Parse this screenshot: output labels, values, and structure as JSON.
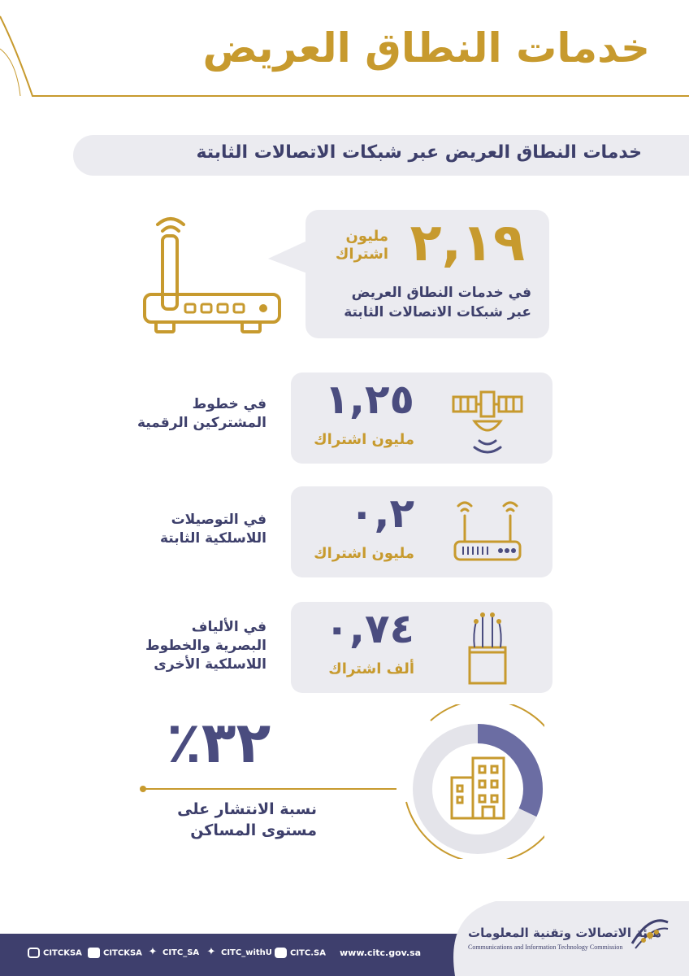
{
  "header": {
    "title": "خدمات النطاق العريض"
  },
  "subtitle": "خدمات النطاق العريض عبر شبكات الاتصالات الثابتة",
  "main_stat": {
    "value": "٢,١٩",
    "unit_line1": "مليون",
    "unit_line2": "اشتراك",
    "desc_line1": "في خدمات النطاق العريض",
    "desc_line2": "عبر شبكات الاتصالات الثابتة",
    "icon": "router-icon"
  },
  "stats": [
    {
      "value": "١,٢٥",
      "unit": "مليون اشتراك",
      "label_lines": [
        "في خطوط",
        "المشتركين الرقمية"
      ],
      "icon": "satellite-icon"
    },
    {
      "value": "٠,٢",
      "unit": "مليون اشتراك",
      "label_lines": [
        "في التوصيلات",
        "اللاسلكية الثابتة"
      ],
      "icon": "wireless-router-icon"
    },
    {
      "value": "٠,٧٤",
      "unit": "ألف اشتراك",
      "label_lines": [
        "في الألياف",
        "البصرية والخطوط",
        "اللاسلكية الأخرى"
      ],
      "icon": "fiber-optic-icon"
    }
  ],
  "penetration": {
    "value": "٪٣٢",
    "fraction": 0.32,
    "label_line1": "نسبة الانتشار على",
    "label_line2": "مستوى المساكن",
    "icon": "building-icon"
  },
  "footer": {
    "org_ar": "هيئة الاتصالات وتقنية المعلومات",
    "org_en": "Communications and Information Technology Commission",
    "website": "www.citc.gov.sa",
    "social": [
      {
        "icon": "instagram-icon",
        "handle": "CITCKSA"
      },
      {
        "icon": "youtube-icon",
        "handle": "CITCKSA"
      },
      {
        "icon": "twitter-icon",
        "handle": "CITC_SA"
      },
      {
        "icon": "twitter-icon",
        "handle": "CITC_withU"
      },
      {
        "icon": "facebook-icon",
        "handle": "CITC.SA"
      }
    ]
  },
  "colors": {
    "gold": "#c79a2e",
    "navy": "#4a4c7f",
    "card": "#ebebf0",
    "footer": "#3e3f6d"
  }
}
